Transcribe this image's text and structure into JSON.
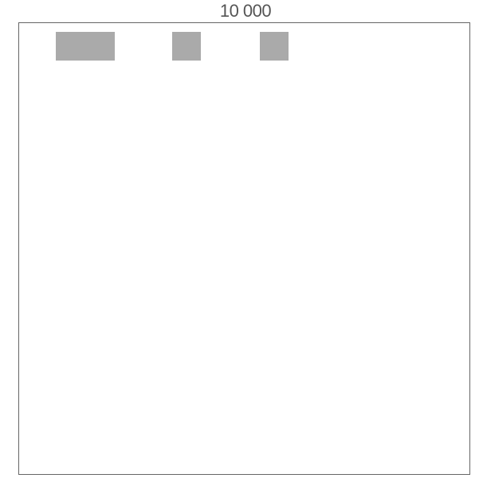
{
  "title": "10 000",
  "colors": {
    "text": "#555555",
    "frame_border": "#666666",
    "block_fill": "#aaaaaa"
  },
  "blocks": [
    {
      "label": ""
    },
    {
      "label": ""
    },
    {
      "label": ""
    }
  ]
}
